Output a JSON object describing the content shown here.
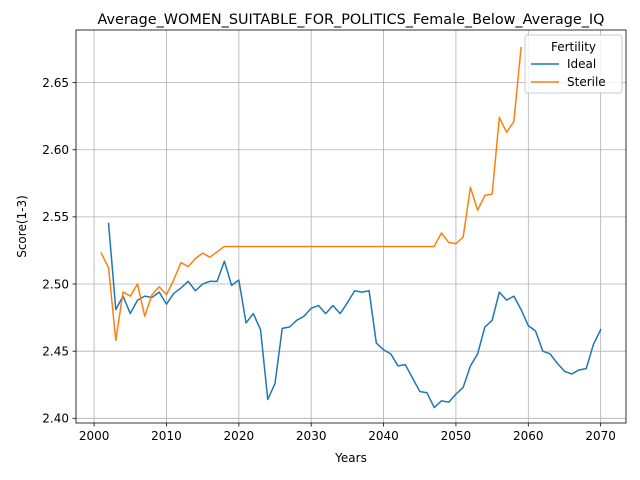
{
  "chart_data": {
    "type": "line",
    "title": "Average_WOMEN_SUITABLE_FOR_POLITICS_Female_Below_Average_IQ",
    "xlabel": "Years",
    "ylabel": "Score(1-3)",
    "xlim": [
      1997.5,
      2073.5
    ],
    "ylim": [
      2.3965,
      2.6892
    ],
    "xticks": [
      2000,
      2010,
      2020,
      2030,
      2040,
      2050,
      2060,
      2070
    ],
    "xtick_labels": [
      "2000",
      "2010",
      "2020",
      "2030",
      "2040",
      "2050",
      "2060",
      "2070"
    ],
    "yticks": [
      2.4,
      2.45,
      2.5,
      2.55,
      2.6,
      2.65
    ],
    "ytick_labels": [
      "2.40",
      "2.45",
      "2.50",
      "2.55",
      "2.60",
      "2.65"
    ],
    "grid": true,
    "legend": {
      "title": "Fertility",
      "placement": "top-right"
    },
    "series": [
      {
        "name": "Ideal",
        "color": "#1f77b4",
        "x": [
          2002,
          2003,
          2004,
          2005,
          2006,
          2007,
          2008,
          2009,
          2010,
          2011,
          2012,
          2013,
          2014,
          2015,
          2016,
          2017,
          2018,
          2019,
          2020,
          2021,
          2022,
          2023,
          2024,
          2025,
          2026,
          2027,
          2028,
          2029,
          2030,
          2031,
          2032,
          2033,
          2034,
          2035,
          2036,
          2037,
          2038,
          2039,
          2040,
          2041,
          2042,
          2043,
          2044,
          2045,
          2046,
          2047,
          2048,
          2049,
          2050,
          2051,
          2052,
          2053,
          2054,
          2055,
          2056,
          2057,
          2058,
          2059,
          2060,
          2061,
          2062,
          2063,
          2064,
          2065,
          2066,
          2067,
          2068,
          2069,
          2070
        ],
        "values": [
          2.545,
          2.481,
          2.491,
          2.478,
          2.488,
          2.491,
          2.49,
          2.494,
          2.485,
          2.493,
          2.497,
          2.502,
          2.495,
          2.5,
          2.502,
          2.502,
          2.517,
          2.499,
          2.503,
          2.471,
          2.478,
          2.466,
          2.414,
          2.426,
          2.467,
          2.468,
          2.473,
          2.476,
          2.482,
          2.484,
          2.478,
          2.484,
          2.478,
          2.486,
          2.495,
          2.494,
          2.495,
          2.456,
          2.451,
          2.448,
          2.439,
          2.44,
          2.43,
          2.42,
          2.419,
          2.408,
          2.413,
          2.412,
          2.418,
          2.423,
          2.439,
          2.448,
          2.468,
          2.473,
          2.494,
          2.488,
          2.491,
          2.481,
          2.469,
          2.465,
          2.45,
          2.448,
          2.441,
          2.435,
          2.433,
          2.436,
          2.437,
          2.455,
          2.466
        ]
      },
      {
        "name": "Sterile",
        "color": "#ff7f0e",
        "x": [
          2001,
          2002,
          2003,
          2004,
          2005,
          2006,
          2007,
          2008,
          2009,
          2010,
          2011,
          2012,
          2013,
          2014,
          2015,
          2016,
          2017,
          2018,
          2019,
          2020,
          2021,
          2022,
          2023,
          2024,
          2025,
          2026,
          2027,
          2028,
          2029,
          2030,
          2031,
          2032,
          2033,
          2034,
          2035,
          2036,
          2037,
          2038,
          2039,
          2040,
          2041,
          2042,
          2043,
          2044,
          2045,
          2046,
          2047,
          2048,
          2049,
          2050,
          2051,
          2052,
          2053,
          2054,
          2055,
          2056,
          2057,
          2058,
          2059
        ],
        "values": [
          2.523,
          2.512,
          2.458,
          2.494,
          2.491,
          2.5,
          2.476,
          2.492,
          2.498,
          2.492,
          2.503,
          2.516,
          2.513,
          2.519,
          2.523,
          2.52,
          2.524,
          2.528,
          2.528,
          2.528,
          2.528,
          2.528,
          2.528,
          2.528,
          2.528,
          2.528,
          2.528,
          2.528,
          2.528,
          2.528,
          2.528,
          2.528,
          2.528,
          2.528,
          2.528,
          2.528,
          2.528,
          2.528,
          2.528,
          2.528,
          2.528,
          2.528,
          2.528,
          2.528,
          2.528,
          2.528,
          2.528,
          2.538,
          2.531,
          2.53,
          2.535,
          2.572,
          2.555,
          2.566,
          2.567,
          2.624,
          2.613,
          2.621,
          2.676
        ]
      }
    ]
  }
}
